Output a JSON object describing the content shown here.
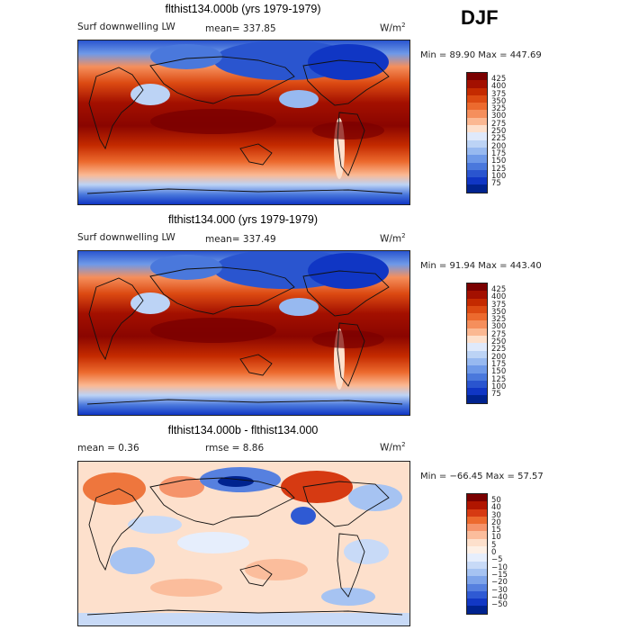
{
  "season": "DJF",
  "panels": [
    {
      "title": "flthist134.000b (yrs 1979-1979)",
      "variable": "Surf downwelling LW",
      "stat1": "mean=  337.85",
      "stat2": "",
      "units": "W/m",
      "units_sup": "2",
      "minmax": "Min =  89.90 Max = 447.69",
      "kind": "abs",
      "colorbar_labels": [
        "425",
        "400",
        "375",
        "350",
        "325",
        "300",
        "275",
        "250",
        "225",
        "200",
        "175",
        "150",
        "125",
        "100",
        "75"
      ]
    },
    {
      "title": "flthist134.000 (yrs 1979-1979)",
      "variable": "Surf downwelling LW",
      "stat1": "mean=  337.49",
      "stat2": "",
      "units": "W/m",
      "units_sup": "2",
      "minmax": "Min =  91.94 Max = 443.40",
      "kind": "abs",
      "colorbar_labels": [
        "425",
        "400",
        "375",
        "350",
        "325",
        "300",
        "275",
        "250",
        "225",
        "200",
        "175",
        "150",
        "125",
        "100",
        "75"
      ]
    },
    {
      "title": "flthist134.000b - flthist134.000",
      "variable": "",
      "stat1": "mean =    0.36",
      "stat2": "rmse =    8.86",
      "units": "W/m",
      "units_sup": "2",
      "minmax": "Min = −66.45 Max =   57.57",
      "kind": "diff",
      "colorbar_labels": [
        "50",
        "40",
        "30",
        "20",
        "15",
        "10",
        "5",
        "0",
        "−5",
        "−10",
        "−15",
        "−20",
        "−30",
        "−40",
        "−50"
      ]
    }
  ],
  "colors": {
    "abs_scale": [
      "#7a0000",
      "#a31000",
      "#c42a00",
      "#dc4a12",
      "#ec6a2e",
      "#f58f5c",
      "#fbb892",
      "#fde0cc",
      "#dfe9fb",
      "#bcd3f5",
      "#97b9f0",
      "#6e99e8",
      "#4a78dc",
      "#2a55cf",
      "#1036c4",
      "#00238f"
    ],
    "diff_scale": [
      "#7a0000",
      "#b01500",
      "#d63a12",
      "#ec6a2e",
      "#f5936a",
      "#fbbd9c",
      "#fde0cc",
      "#fdf0e6",
      "#e6eefc",
      "#c8daf7",
      "#a6c3f2",
      "#7ea4ea",
      "#5680df",
      "#2f5ad3",
      "#1238c4",
      "#00238f"
    ]
  }
}
